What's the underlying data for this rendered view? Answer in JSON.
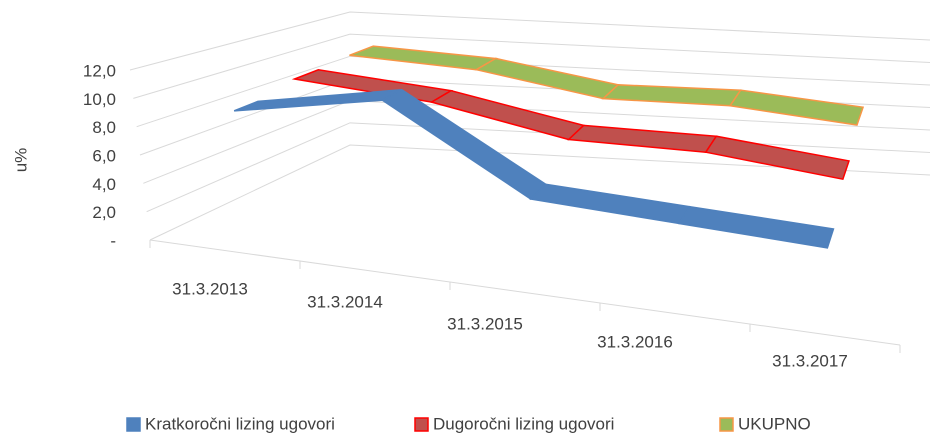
{
  "chart_data": {
    "type": "line3d",
    "yaxis_label": "u%",
    "categories": [
      "31.3.2013",
      "31.3.2014",
      "31.3.2015",
      "31.3.2016",
      "31.3.2017"
    ],
    "series": [
      {
        "name": "Kratkoročni lizing ugovori",
        "color": "#4f81bd",
        "edge": "#4f81bd",
        "values": [
          9.6,
          11.8,
          6.2,
          5.9,
          5.6
        ]
      },
      {
        "name": "Dugoročni lizing ugovori",
        "color": "#c0504d",
        "edge": "#ff0000",
        "values": [
          10.2,
          9.6,
          7.9,
          8.1,
          7.2
        ]
      },
      {
        "name": "UKUPNO",
        "color": "#9bbb59",
        "edge": "#f79646",
        "values": [
          10.4,
          10.1,
          8.6,
          8.9,
          8.2
        ]
      }
    ],
    "ylim": [
      0,
      12
    ],
    "yticks": [
      {
        "value": 0,
        "label": "-"
      },
      {
        "value": 2,
        "label": "2,0"
      },
      {
        "value": 4,
        "label": "4,0"
      },
      {
        "value": 6,
        "label": "6,0"
      },
      {
        "value": 8,
        "label": "8,0"
      },
      {
        "value": 10,
        "label": "10,0"
      },
      {
        "value": 12,
        "label": "12,0"
      }
    ],
    "grid": true,
    "legend": "bottom"
  }
}
